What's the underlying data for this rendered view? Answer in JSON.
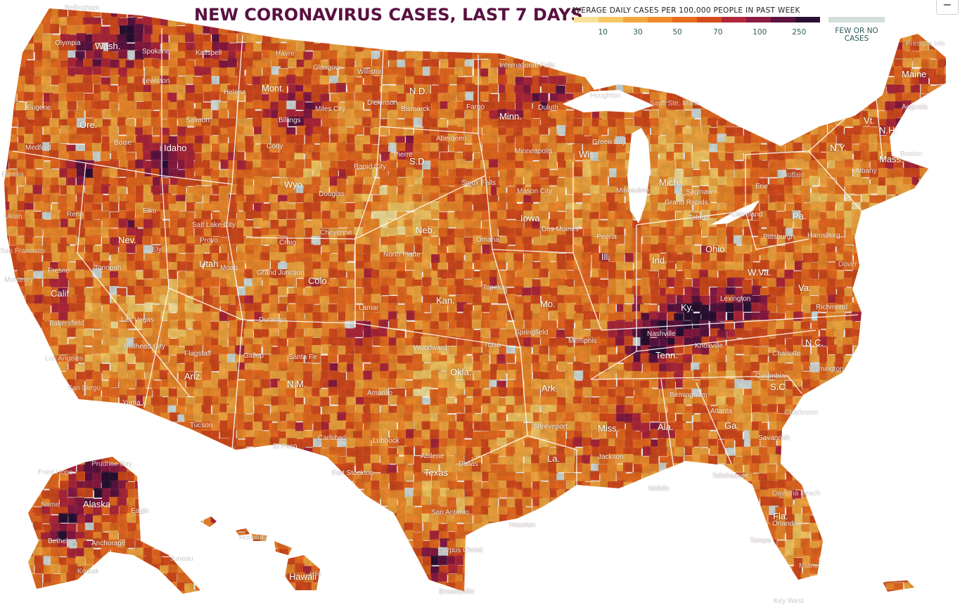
{
  "title": "NEW CORONAVIRUS CASES, LAST 7 DAYS",
  "legend": {
    "title": "AVERAGE DAILY CASES PER 100,000 PEOPLE IN PAST WEEK",
    "colors": [
      "#f7e29a",
      "#f7c862",
      "#f4a73f",
      "#ef8a2b",
      "#e86a1f",
      "#d44a1c",
      "#b0273a",
      "#8a1a42",
      "#5c1340",
      "#2a1033"
    ],
    "ticks": [
      "10",
      "30",
      "50",
      "70",
      "100",
      "250"
    ],
    "few_label": "FEW OR NO CASES",
    "few_color": "#d3ddda"
  },
  "controls": {
    "collapse_label": "−"
  },
  "state_labels": [
    "Wash.",
    "Ore.",
    "Idaho",
    "Mont.",
    "N.D.",
    "Minn.",
    "Wis.",
    "S.D.",
    "Wyo.",
    "Nev.",
    "Calif.",
    "Utah",
    "Colo.",
    "Neb.",
    "Iowa",
    "Ill.",
    "Mich.",
    "Ind.",
    "Ohio",
    "Pa.",
    "N.Y.",
    "Vt.",
    "N.H.",
    "Maine",
    "Mass.",
    "Kan.",
    "Mo.",
    "Ky.",
    "W.Va.",
    "Va.",
    "N.C.",
    "Tenn.",
    "S.C.",
    "Ariz.",
    "N.M.",
    "Okla.",
    "Ark.",
    "Texas",
    "La.",
    "Miss.",
    "Ala.",
    "Ga.",
    "Fla.",
    "Alaska",
    "Hawaii"
  ],
  "city_labels": [
    "Bellingham",
    "Olympia",
    "Spokane",
    "Lewiston",
    "Kalispell",
    "Havre",
    "Glasgow",
    "Williston",
    "International Falls",
    "Helena",
    "Miles City",
    "Dickinson",
    "Fargo",
    "Duluth",
    "Houghton",
    "Sault Ste. Marie",
    "Eugene",
    "Medford",
    "Eureka",
    "Salmon",
    "Billings",
    "Cody",
    "Rapid City",
    "Aberdeen",
    "Minneapolis",
    "Augusta",
    "Presque Isle",
    "Boise",
    "Elko",
    "Reno",
    "Ely",
    "Douglas",
    "Salt Lake City",
    "Cheyenne",
    "Sioux Falls",
    "Mason City",
    "Green Bay",
    "Milwaukee",
    "Grand Rapids",
    "Ukiah",
    "San Francisco",
    "Monterey",
    "Tonopah",
    "Fresno",
    "Craig",
    "Grand Junction",
    "North Platte",
    "Omaha",
    "Des Moines",
    "Peoria",
    "Toledo",
    "Cleveland",
    "Pittsburgh",
    "Harrisburg",
    "Dover",
    "Boston",
    "Albany",
    "Erie",
    "Buffalo",
    "Provo",
    "Moab",
    "Lamar",
    "Durango",
    "Topeka",
    "Springfield",
    "Las Vegas",
    "Bakersfield",
    "Bullhead City",
    "Flagstaff",
    "Gallup",
    "Santa Fe",
    "Amarillo",
    "Woodward",
    "Tulsa",
    "Lexington",
    "Knoxville",
    "Charlotte",
    "Richmond",
    "Wilmington",
    "Columbia",
    "Memphis",
    "Nashville",
    "Birmingham",
    "Atlanta",
    "Savannah",
    "Charleston",
    "Los Angeles",
    "San Diego",
    "Yuma",
    "Tucson",
    "Carlsbad",
    "El Paso",
    "Lubbock",
    "Abilene",
    "Dallas",
    "Fort Stockton",
    "San Antonio",
    "Houston",
    "Corpus Christi",
    "Brownsville",
    "Jackson",
    "Mobile",
    "Tallahassee",
    "Orlando",
    "Tampa",
    "Daytona Beach",
    "Miami",
    "Key West",
    "Point Hope",
    "Prudhoe Bay",
    "Nome",
    "Bethel",
    "Anchorage",
    "Kodiak",
    "Eagle",
    "Juneau",
    "Honolulu",
    "Hilo",
    "Shreveport",
    "Bismarck",
    "Pierre",
    "Saginaw"
  ]
}
